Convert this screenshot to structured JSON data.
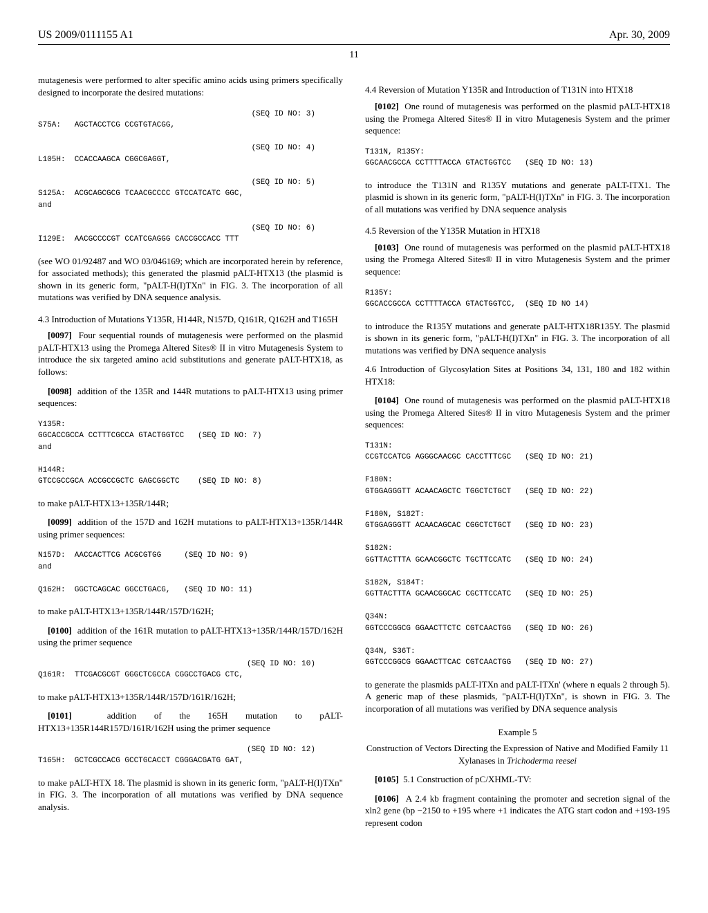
{
  "header": {
    "left": "US 2009/0111155 A1",
    "right": "Apr. 30, 2009",
    "pagenum": "11"
  },
  "left": {
    "intro": "mutagenesis were performed to alter specific amino acids using primers specifically designed to incorporate the desired mutations:",
    "seq3_id": "(SEQ ID NO: 3)",
    "seq3": "S75A:   AGCTACCTCG CCGTGTACGG,",
    "seq4_id": "(SEQ ID NO: 4)",
    "seq4": "L105H:  CCACCAAGCA CGGCGAGGT,",
    "seq5_id": "(SEQ ID NO: 5)",
    "seq5": "S125A:  ACGCAGCGCG TCAACGCCCC GTCCATCATC GGC,\nand",
    "seq6_id": "(SEQ ID NO: 6)",
    "seq6": "I129E:  AACGCCCCGT CCATCGAGGG CACCGCCACC TTT",
    "incorp": "(see WO 01/92487 and WO 03/046169; which are incorporated herein by reference, for associated methods); this generated the plasmid pALT-HTX13 (the plasmid is shown in its generic form, \"pALT-H(I)TXn\" in FIG. 3. The incorporation of all mutations was verified by DNA sequence analysis.",
    "sec43": "4.3 Introduction of Mutations Y135R, H144R, N157D, Q161R, Q162H and T165H",
    "p97": "Four sequential rounds of mutagenesis were performed on the plasmid pALT-HTX13 using the Promega Altered Sites® II in vitro Mutagenesis System to introduce the six targeted amino acid substitutions and generate pALT-HTX18, as follows:",
    "p98": "addition of the 135R and 144R mutations to pALT-HTX13 using primer sequences:",
    "seq7": "Y135R:\nGGCACCGCCA CCTTTCGCCA GTACTGGTCC   (SEQ ID NO: 7)\nand",
    "seq8": "H144R:\nGTCCGCCGCA ACCGCCGCTC GAGCGGCTC    (SEQ ID NO: 8)",
    "make1": "to make pALT-HTX13+135R/144R;",
    "p99": "addition of the 157D and 162H mutations to pALT-HTX13+135R/144R using primer sequences:",
    "seq9": "N157D:  AACCACTTCG ACGCGTGG     (SEQ ID NO: 9)\nand",
    "seq11": "Q162H:  GGCTCAGCAC GGCCTGACG,   (SEQ ID NO: 11)",
    "make2": "to make pALT-HTX13+135R/144R/157D/162H;",
    "p100": "addition of the 161R mutation to pALT-HTX13+135R/144R/157D/162H using the primer sequence",
    "seq10_id": "(SEQ ID NO: 10)",
    "seq10": "Q161R:  TTCGACGCGT GGGCTCGCCA CGGCCTGACG CTC,",
    "make3": "to make pALT-HTX13+135R/144R/157D/161R/162H;",
    "p101": "addition of the 165H mutation to pALT-HTX13+135R144R157D/161R/162H using the primer sequence",
    "seq12_id": "(SEQ ID NO: 12)",
    "seq12": "T165H:  GCTCGCCACG GCCTGCACCT CGGGACGATG GAT,",
    "make4": "to make pALT-HTX 18. The plasmid is shown in its generic form, \"pALT-H(I)TXn\" in FIG. 3. The incorporation of all mutations was verified by DNA sequence analysis."
  },
  "right": {
    "sec44": "4.4 Reversion of Mutation Y135R and Introduction of T131N into HTX18",
    "p102": "One round of mutagenesis was performed on the plasmid pALT-HTX18 using the Promega Altered Sites® II in vitro Mutagenesis System and the primer sequence:",
    "seq13": "T131N, R135Y:\nGGCAACGCCA CCTTTTACCA GTACTGGTCC   (SEQ ID NO: 13)",
    "intro1": "to introduce the T131N and R135Y mutations and generate pALT-ITX1. The plasmid is shown in its generic form, \"pALT-H(I)TXn\" in FIG. 3. The incorporation of all mutations was verified by DNA sequence analysis",
    "sec45": "4.5 Reversion of the Y135R Mutation in HTX18",
    "p103": "One round of mutagenesis was performed on the plasmid pALT-HTX18 using the Promega Altered Sites® II in vitro Mutagenesis System and the primer sequence:",
    "seq14": "R135Y:\nGGCACCGCCA CCTTTTACCA GTACTGGTCC,  (SEQ ID NO 14)",
    "intro2": "to introduce the R135Y mutations and generate pALT-HTX18R135Y. The plasmid is shown in its generic form, \"pALT-H(I)TXn\" in FIG. 3. The incorporation of all mutations was verified by DNA sequence analysis",
    "sec46": "4.6 Introduction of Glycosylation Sites at Positions 34, 131, 180 and 182 within HTX18:",
    "p104": "One round of mutagenesis was performed on the plasmid pALT-HTX18 using the Promega Altered Sites® II in vitro Mutagenesis System and the primer sequences:",
    "seq21": "T131N:\nCCGTCCATCG AGGGCAACGC CACCTTTCGC   (SEQ ID NO: 21)",
    "seq22": "F180N:\nGTGGAGGGTT ACAACAGCTC TGGCTCTGCT   (SEQ ID NO: 22)",
    "seq23": "F180N, S182T:\nGTGGAGGGTT ACAACAGCAC CGGCTCTGCT   (SEQ ID NO: 23)",
    "seq24": "S182N:\nGGTTACTTTA GCAACGGCTC TGCTTCCATC   (SEQ ID NO: 24)",
    "seq25": "S182N, S184T:\nGGTTACTTTA GCAACGGCAC CGCTTCCATC   (SEQ ID NO: 25)",
    "seq26": "Q34N:\nGGTCCCGGCG GGAACTTCTC CGTCAACTGG   (SEQ ID NO: 26)",
    "seq27": "Q34N, S36T:\nGGTCCCGGCG GGAACTTCAC CGTCAACTGG   (SEQ ID NO: 27)",
    "gen": "to generate the plasmids pALT-ITXn and pALT-ITXn' (where n equals 2 through 5). A generic map of these plasmids, \"pALT-H(I)TXn\", is shown in FIG. 3. The incorporation of all mutations was verified by DNA sequence analysis",
    "ex5": "Example 5",
    "ex5_title_a": "Construction of Vectors Directing the Expression of Native and Modified Family 11 Xylanases in ",
    "ex5_title_b": "Trichoderma reesei",
    "p105": "5.1 Construction of pC/XHML-TV:",
    "p106": "A 2.4 kb fragment containing the promoter and secretion signal of the xln2 gene (bp −2150 to +195 where +1 indicates the ATG start codon and +193-195 represent codon"
  }
}
